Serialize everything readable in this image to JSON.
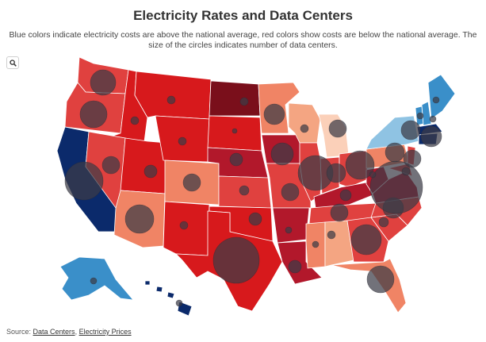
{
  "header": {
    "title": "Electricity Rates and Data Centers",
    "subtitle": "Blue colors indicate electricity costs are above the national average, red colors show costs are below the national average. The size of the circles indicates number of data centers."
  },
  "controls": {
    "zoom_icon": "search-icon"
  },
  "footer": {
    "prefix": "Source: ",
    "link1": "Data Centers",
    "separator": ", ",
    "link2": "Electricity Prices"
  },
  "colors": {
    "deep_blue": "#0b2a6b",
    "blue": "#3a8fc9",
    "light_blue": "#8fc3e3",
    "very_light_red": "#fbd0b9",
    "light_red": "#f4a582",
    "salmon": "#f08465",
    "red": "#e0413f",
    "strong_red": "#d7191c",
    "deep_red": "#b2182b",
    "darkest_red": "#7a0f1b",
    "circle": "#3c3c46"
  }
}
